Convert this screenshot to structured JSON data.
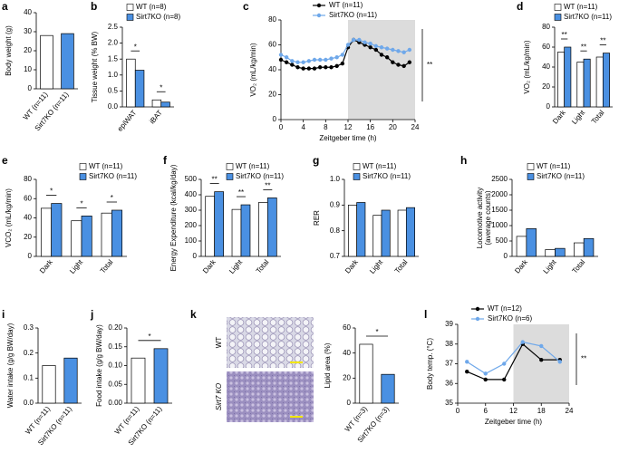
{
  "chart_data": [
    {
      "type": "bar",
      "panel": "a",
      "ylabel": "Body weight (g)",
      "categories": [
        "WT (n=11)",
        "Sirt7KO (n=11)"
      ],
      "values": [
        28,
        29
      ],
      "colors": [
        "#ffffff",
        "#4a90e2"
      ],
      "ylim": [
        0,
        40
      ],
      "yticks": [
        0,
        10,
        20,
        30,
        40
      ]
    },
    {
      "type": "bar",
      "panel": "b",
      "ylabel": "Tissue weight (% BW)",
      "categories": [
        "epiWAT",
        "iBAT"
      ],
      "series": [
        {
          "name": "WT (n=8)",
          "color": "#ffffff",
          "values": [
            1.5,
            0.22
          ]
        },
        {
          "name": "Sirt7KO (n=8)",
          "color": "#4a90e2",
          "values": [
            1.15,
            0.15
          ]
        }
      ],
      "significance": [
        "*",
        "*"
      ],
      "ylim": [
        0,
        2.5
      ],
      "yticks": [
        {
          "value": 0,
          "label": "0.0"
        },
        0.5,
        {
          "value": 1,
          "label": "1.0"
        },
        1.5,
        {
          "value": 2,
          "label": "2.0"
        },
        2.5
      ]
    },
    {
      "type": "line",
      "panel": "c",
      "ylabel": "VO₂ (mL/kg/min)",
      "xlabel": "Zeitgeber time (h)",
      "x": [
        0,
        1,
        2,
        3,
        4,
        5,
        6,
        7,
        8,
        9,
        10,
        11,
        12,
        13,
        14,
        15,
        16,
        17,
        18,
        19,
        20,
        21,
        22,
        23
      ],
      "series": [
        {
          "name": "WT (n=11)",
          "color": "#000000",
          "values": [
            48,
            46,
            44,
            42,
            41,
            41,
            41,
            42,
            42,
            42,
            43,
            45,
            58,
            64,
            62,
            60,
            58,
            56,
            52,
            50,
            46,
            44,
            43,
            46
          ]
        },
        {
          "name": "Sirt7KO (n=11)",
          "color": "#6fa8ea",
          "values": [
            52,
            50,
            47,
            46,
            46,
            47,
            48,
            48,
            48,
            49,
            50,
            52,
            60,
            64,
            64,
            62,
            61,
            59,
            58,
            57,
            56,
            55,
            54,
            56
          ]
        }
      ],
      "shade": [
        12,
        24
      ],
      "significance": "**",
      "xlim": [
        0,
        24
      ],
      "xticks": [
        0,
        4,
        8,
        12,
        16,
        20,
        24
      ],
      "ylim": [
        0,
        80
      ],
      "yticks": [
        0,
        20,
        40,
        60,
        80
      ]
    },
    {
      "type": "bar",
      "panel": "d",
      "ylabel": "VO₂ (mL/kg/min)",
      "categories": [
        "Dark",
        "Light",
        "Total"
      ],
      "series": [
        {
          "name": "WT (n=11)",
          "color": "#ffffff",
          "values": [
            55,
            45,
            50
          ]
        },
        {
          "name": "Sirt7KO (n=11)",
          "color": "#4a90e2",
          "values": [
            60,
            48,
            54
          ]
        }
      ],
      "significance": [
        "**",
        "**",
        "**"
      ],
      "ylim": [
        0,
        80
      ],
      "yticks": [
        0,
        20,
        40,
        60,
        80
      ]
    },
    {
      "type": "bar",
      "panel": "e",
      "ylabel": "VCO₂ (mL/kg/min)",
      "categories": [
        "Dark",
        "Light",
        "Total"
      ],
      "series": [
        {
          "name": "WT (n=11)",
          "color": "#ffffff",
          "values": [
            50,
            37,
            45
          ]
        },
        {
          "name": "Sirt7KO (n=11)",
          "color": "#4a90e2",
          "values": [
            55,
            42,
            48
          ]
        }
      ],
      "significance": [
        "*",
        "*",
        "*"
      ],
      "ylim": [
        0,
        80
      ],
      "yticks": [
        0,
        20,
        40,
        60,
        80
      ]
    },
    {
      "type": "bar",
      "panel": "f",
      "ylabel": "Energy Expenditure (kcal/kg/day)",
      "categories": [
        "Dark",
        "Light",
        "Total"
      ],
      "series": [
        {
          "name": "WT (n=11)",
          "color": "#ffffff",
          "values": [
            390,
            305,
            350
          ]
        },
        {
          "name": "Sirt7KO (n=11)",
          "color": "#4a90e2",
          "values": [
            420,
            335,
            380
          ]
        }
      ],
      "significance": [
        "**",
        "**",
        "**"
      ],
      "ylim": [
        0,
        500
      ],
      "yticks": [
        0,
        100,
        200,
        300,
        400,
        500
      ]
    },
    {
      "type": "bar",
      "panel": "g",
      "ylabel": "RER",
      "categories": [
        "Dark",
        "Light",
        "Total"
      ],
      "series": [
        {
          "name": "WT (n=11)",
          "color": "#ffffff",
          "values": [
            0.9,
            0.86,
            0.88
          ]
        },
        {
          "name": "Sirt7KO (n=11)",
          "color": "#4a90e2",
          "values": [
            0.91,
            0.88,
            0.89
          ]
        }
      ],
      "ylim": [
        0.7,
        1.0
      ],
      "yticks": [
        0.7,
        0.8,
        0.9,
        {
          "value": 1,
          "label": "1.0"
        }
      ]
    },
    {
      "type": "bar",
      "panel": "h",
      "ylabel": [
        "Locomotive activity",
        "(average counts)"
      ],
      "categories": [
        "Dark",
        "Light",
        "Total"
      ],
      "series": [
        {
          "name": "WT (n=11)",
          "color": "#ffffff",
          "values": [
            650,
            220,
            440
          ]
        },
        {
          "name": "Sirt7KO (n=11)",
          "color": "#4a90e2",
          "values": [
            900,
            260,
            580
          ]
        }
      ],
      "ylim": [
        0,
        2500
      ],
      "yticks": [
        0,
        500,
        1000,
        1500,
        2000,
        2500
      ]
    },
    {
      "type": "bar",
      "panel": "i",
      "ylabel": "Water intake (g/g BW/day)",
      "categories": [
        "WT (n=11)",
        "Sirt7KO (n=11)"
      ],
      "values": [
        0.15,
        0.18
      ],
      "colors": [
        "#ffffff",
        "#4a90e2"
      ],
      "ylim": [
        0,
        0.3
      ],
      "yticks": [
        {
          "value": 0,
          "label": "0.0"
        },
        0.1,
        0.2,
        0.3
      ]
    },
    {
      "type": "bar",
      "panel": "j",
      "ylabel": "Food intake (g/g BW/day)",
      "categories": [
        "WT (n=11)",
        "Sirt7KO (n=11)"
      ],
      "values": [
        0.12,
        0.145
      ],
      "colors": [
        "#ffffff",
        "#4a90e2"
      ],
      "significance": "*",
      "ylim": [
        0,
        0.2
      ],
      "yticks": [
        {
          "value": 0,
          "label": "0.00"
        },
        0.05,
        {
          "value": 0.1,
          "label": "0.10"
        },
        0.15,
        {
          "value": 0.2,
          "label": "0.20"
        }
      ]
    },
    {
      "type": "bar",
      "panel": "k",
      "image_labels": [
        "WT",
        "Sirt7 KO"
      ],
      "ylabel": "Lipid area (%)",
      "categories": [
        "WT (n=3)",
        "Sirt7KO (n=3)"
      ],
      "values": [
        47,
        23
      ],
      "colors": [
        "#ffffff",
        "#4a90e2"
      ],
      "significance": "*",
      "ylim": [
        0,
        60
      ],
      "yticks": [
        0,
        20,
        40,
        60
      ]
    },
    {
      "type": "line",
      "panel": "l",
      "ylabel": "Body temp. (°C)",
      "xlabel": "Zeitgeber time (h)",
      "x": [
        2,
        6,
        10,
        14,
        18,
        22
      ],
      "series": [
        {
          "name": "WT (n=12)",
          "color": "#000000",
          "values": [
            36.6,
            36.2,
            36.2,
            38.0,
            37.2,
            37.2
          ]
        },
        {
          "name": "Sirt7KO (n=6)",
          "color": "#6fa8ea",
          "values": [
            37.1,
            36.5,
            37.0,
            38.1,
            37.9,
            37.1
          ]
        }
      ],
      "shade": [
        12,
        24
      ],
      "significance": "**",
      "xlim": [
        0,
        24
      ],
      "xticks": [
        0,
        6,
        12,
        18,
        24
      ],
      "ylim": [
        35,
        39
      ],
      "yticks": [
        35,
        36,
        37,
        38,
        39
      ]
    }
  ]
}
